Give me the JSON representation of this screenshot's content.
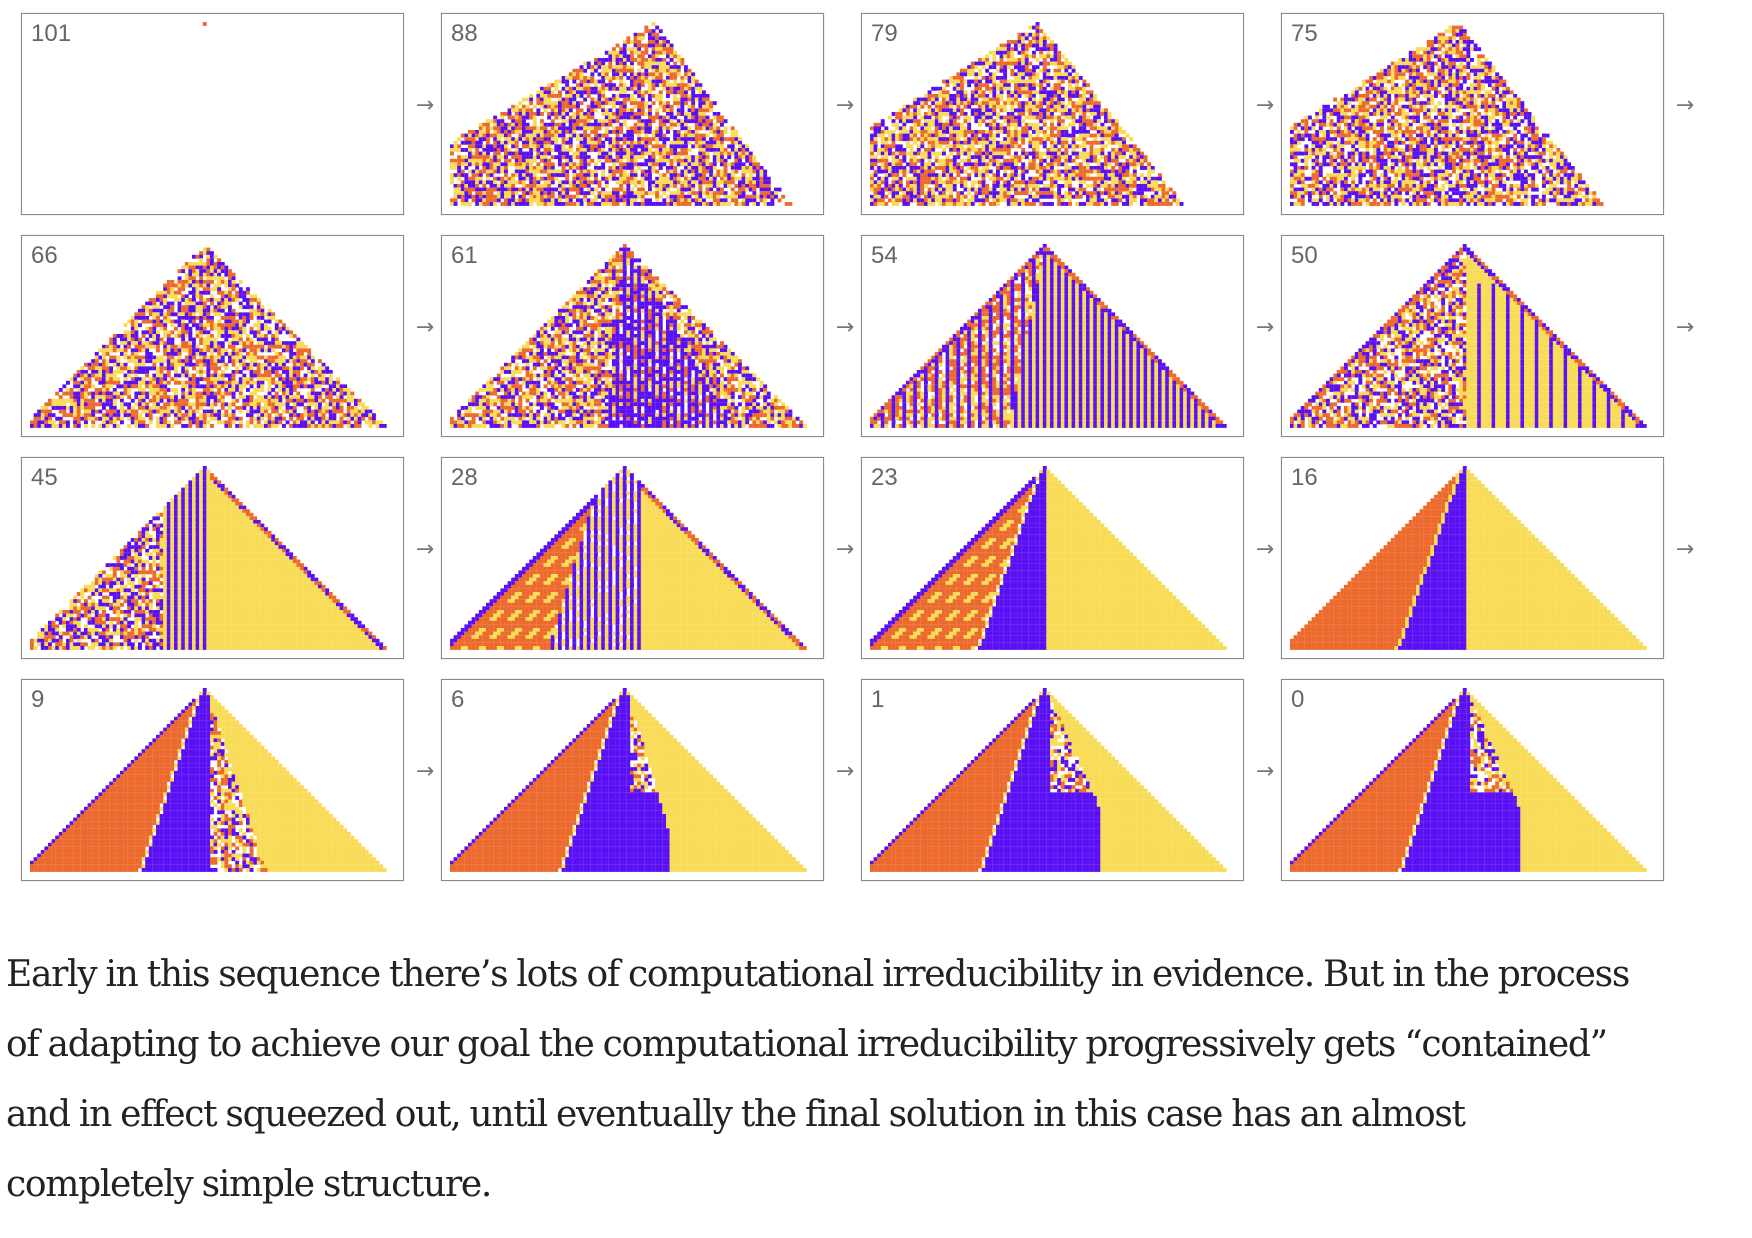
{
  "figure": {
    "colors": {
      "orange": "#EC6A2E",
      "purple": "#5A10F5",
      "yellow": "#F8DC58",
      "background": "#FFFFFF"
    },
    "arrow_glyph": "→",
    "panels": [
      {
        "label": "101",
        "pattern": "seed"
      },
      {
        "label": "88",
        "pattern": "skewed-random"
      },
      {
        "label": "79",
        "pattern": "skewed-random"
      },
      {
        "label": "75",
        "pattern": "skewed-random"
      },
      {
        "label": "66",
        "pattern": "random"
      },
      {
        "label": "61",
        "pattern": "random-stripes"
      },
      {
        "label": "54",
        "pattern": "stripes"
      },
      {
        "label": "50",
        "pattern": "stripes-yellow"
      },
      {
        "label": "45",
        "pattern": "yellow-right"
      },
      {
        "label": "28",
        "pattern": "orange-yellow"
      },
      {
        "label": "23",
        "pattern": "solid-three"
      },
      {
        "label": "16",
        "pattern": "solid-three-clean"
      },
      {
        "label": "9",
        "pattern": "solid-chaos-mid"
      },
      {
        "label": "6",
        "pattern": "solid-chaos-small"
      },
      {
        "label": "1",
        "pattern": "solid-chaos-edge"
      },
      {
        "label": "0",
        "pattern": "solid-chaos-edge"
      }
    ]
  },
  "paragraph": {
    "lines": [
      "Early in this sequence there’s lots of computational irreducibility in evidence. But in the process",
      "of adapting to achieve our goal the computational irreducibility progressively gets “contained”",
      "and in effect squeezed out, until eventually the final solution in this case has an almost",
      "completely simple structure."
    ]
  }
}
